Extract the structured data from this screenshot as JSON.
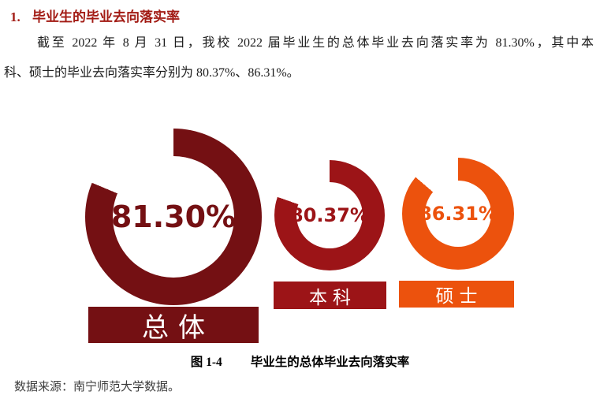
{
  "heading": {
    "number": "1.",
    "title": "毕业生的毕业去向落实率",
    "color": "#A21B14"
  },
  "paragraph": {
    "lines": [
      "截至 2022 年 8 月 31 日，我校 2022 届毕业生的总体毕业去向落实率为 81.30%，其中本",
      "科、硕士的毕业去向落实率分别为 80.37%、86.31%。"
    ]
  },
  "chart_data": {
    "type": "pie",
    "subtype": "donut",
    "figure_label": "图 1-4",
    "title": "毕业生的总体毕业去向落实率",
    "unit": "%",
    "start_angle_deg": 0,
    "direction": "clockwise",
    "empty_color": "#ffffff",
    "series": [
      {
        "label": "总体",
        "value": 81.3,
        "display": "81.30%",
        "color": "#741013"
      },
      {
        "label": "本科",
        "value": 80.37,
        "display": "80.37%",
        "color": "#9C1417"
      },
      {
        "label": "硕士",
        "value": 86.31,
        "display": "86.31%",
        "color": "#EC520D"
      }
    ]
  },
  "caption": {
    "figure_label": "图 1-4",
    "text": "毕业生的总体毕业去向落实率"
  },
  "source": {
    "text": "数据来源：南宁师范大学数据。"
  }
}
